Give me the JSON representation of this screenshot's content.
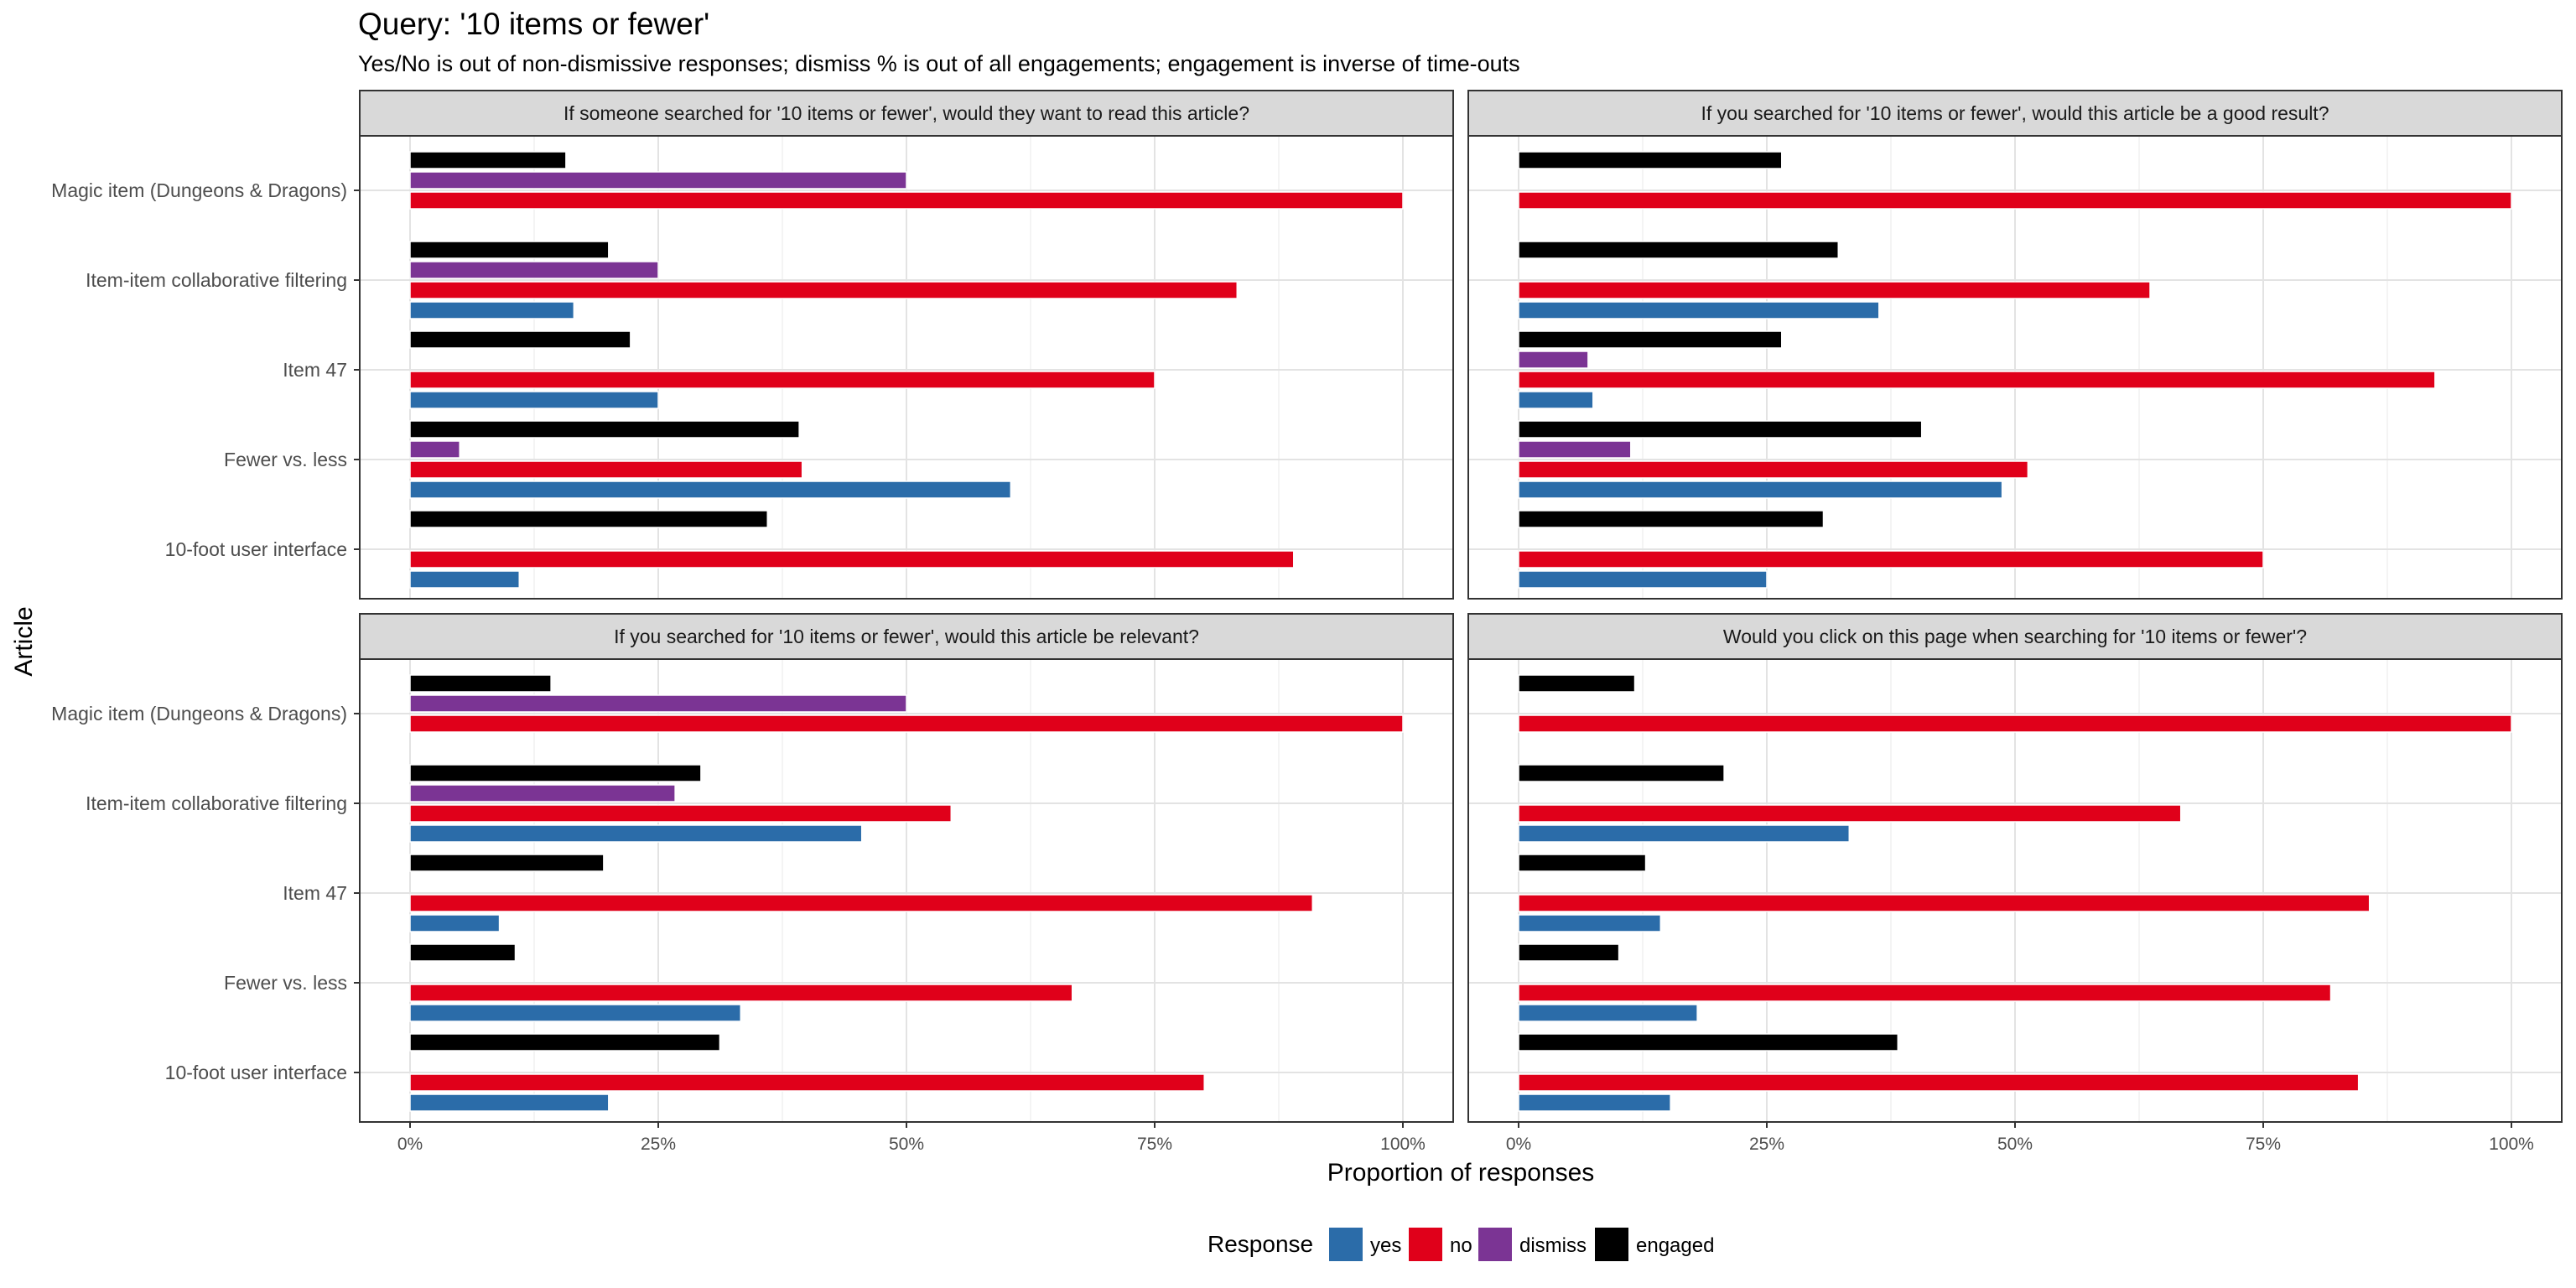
{
  "chart_data": {
    "type": "bar",
    "orientation": "horizontal",
    "title": "Query: '10 items or fewer'",
    "subtitle": "Yes/No is out of non-dismissive responses; dismiss % is out of all engagements; engagement is inverse of time-outs",
    "xlabel": "Proportion of responses",
    "ylabel": "Article",
    "xlim": [
      0,
      1
    ],
    "x_ticks": [
      0,
      0.25,
      0.5,
      0.75,
      1
    ],
    "x_tick_labels": [
      "0%",
      "25%",
      "50%",
      "75%",
      "100%"
    ],
    "grid": true,
    "categories": [
      "Magic item (Dungeons & Dragons)",
      "Item-item collaborative filtering",
      "Item 47",
      "Fewer vs. less",
      "10-foot user interface"
    ],
    "legend": {
      "title": "Response",
      "position": "bottom",
      "items": [
        {
          "key": "yes",
          "label": "yes",
          "color": "#2b6ca9"
        },
        {
          "key": "no",
          "label": "no",
          "color": "#e0001a"
        },
        {
          "key": "dismiss",
          "label": "dismiss",
          "color": "#7b3494"
        },
        {
          "key": "engaged",
          "label": "engaged",
          "color": "#000000"
        }
      ]
    },
    "panels": [
      {
        "title": "If someone searched for '10 items or fewer', would they want to read this article?",
        "values": {
          "yes": [
            0,
            0.165,
            0.25,
            0.605,
            0.11
          ],
          "no": [
            1.0,
            0.833,
            0.75,
            0.395,
            0.89
          ],
          "dismiss": [
            0.5,
            0.25,
            0,
            0.05,
            0
          ],
          "engaged": [
            0.157,
            0.2,
            0.222,
            0.392,
            0.36
          ]
        }
      },
      {
        "title": "If you searched for '10 items or fewer', would this article be a good result?",
        "values": {
          "yes": [
            0,
            0.363,
            0.075,
            0.487,
            0.25
          ],
          "no": [
            1.0,
            0.636,
            0.923,
            0.513,
            0.75
          ],
          "dismiss": [
            0,
            0,
            0.07,
            0.113,
            0
          ],
          "engaged": [
            0.265,
            0.322,
            0.265,
            0.406,
            0.307
          ]
        }
      },
      {
        "title": "If you searched for '10 items or fewer', would this article be relevant?",
        "values": {
          "yes": [
            0,
            0.455,
            0.09,
            0.333,
            0.2
          ],
          "no": [
            1.0,
            0.545,
            0.909,
            0.667,
            0.8
          ],
          "dismiss": [
            0.5,
            0.267,
            0,
            0,
            0
          ],
          "engaged": [
            0.142,
            0.293,
            0.195,
            0.106,
            0.312
          ]
        }
      },
      {
        "title": "Would you click on this page when searching for '10 items or fewer'?",
        "values": {
          "yes": [
            0,
            0.333,
            0.143,
            0.18,
            0.153
          ],
          "no": [
            1.0,
            0.667,
            0.857,
            0.818,
            0.846
          ],
          "dismiss": [
            0,
            0,
            0,
            0,
            0
          ],
          "engaged": [
            0.117,
            0.207,
            0.128,
            0.101,
            0.382
          ]
        }
      }
    ]
  }
}
